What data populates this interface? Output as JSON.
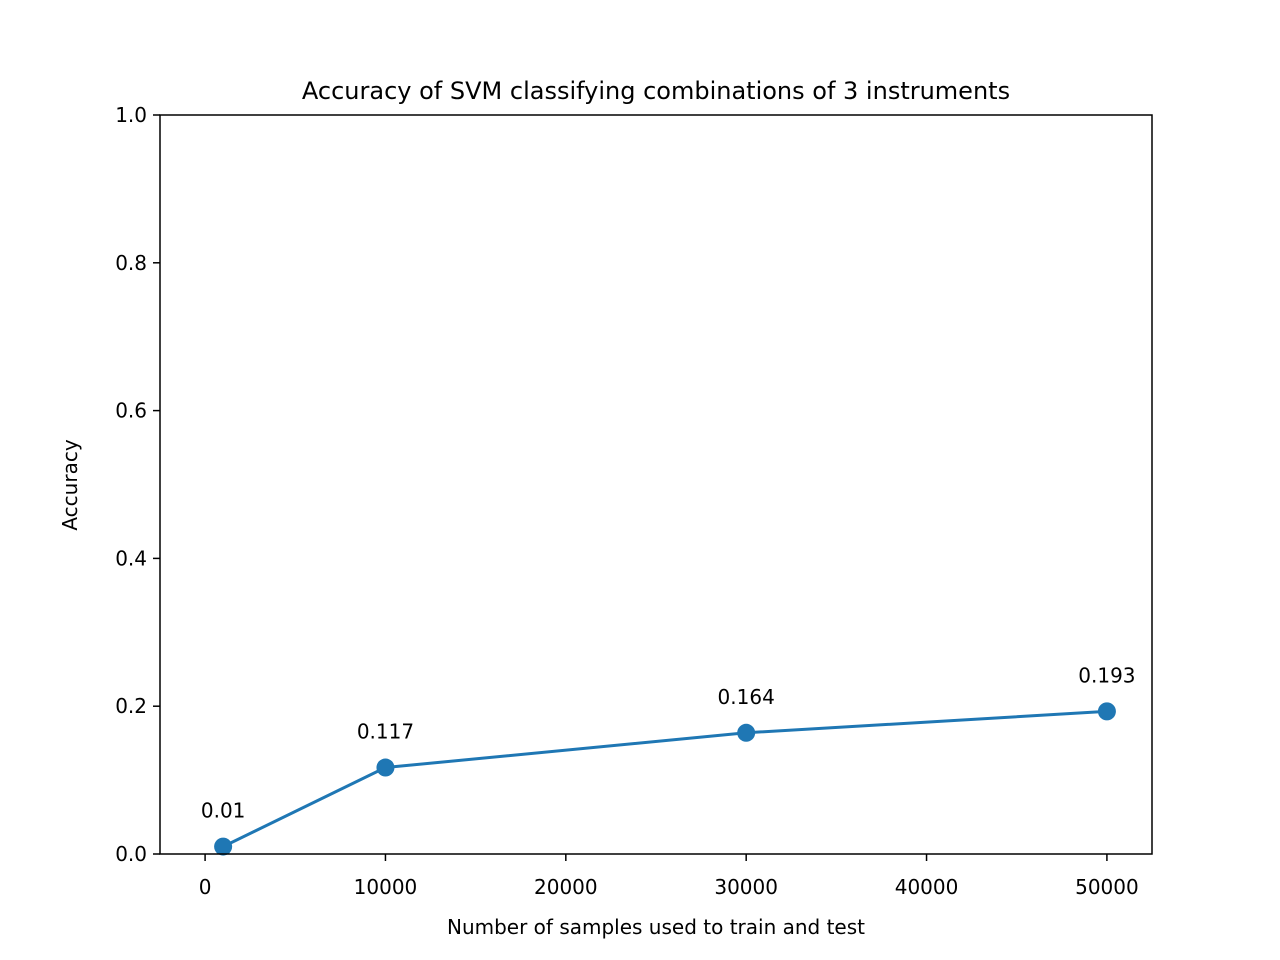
{
  "chart_data": {
    "type": "line",
    "title": "Accuracy of SVM classifying combinations of 3 instruments",
    "xlabel": "Number of samples used to train and test",
    "ylabel": "Accuracy",
    "xlim": [
      -2500,
      52500
    ],
    "ylim": [
      0,
      1.0
    ],
    "xticks": [
      0,
      10000,
      20000,
      30000,
      40000,
      50000
    ],
    "xtick_labels": [
      "0",
      "10000",
      "20000",
      "30000",
      "40000",
      "50000"
    ],
    "yticks": [
      0.0,
      0.2,
      0.4,
      0.6,
      0.8,
      1.0
    ],
    "ytick_labels": [
      "0.0",
      "0.2",
      "0.4",
      "0.6",
      "0.8",
      "1.0"
    ],
    "grid": false,
    "series": [
      {
        "color": "#1f77b4",
        "marker": "circle",
        "x": [
          1000,
          10000,
          30000,
          50000
        ],
        "y": [
          0.01,
          0.117,
          0.164,
          0.193
        ],
        "labels": [
          "0.01",
          "0.117",
          "0.164",
          "0.193"
        ]
      }
    ]
  }
}
